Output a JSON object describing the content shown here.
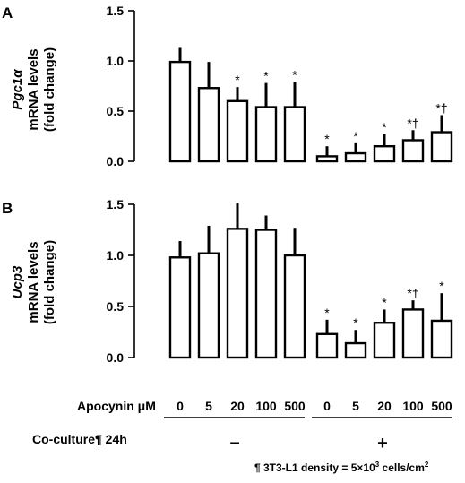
{
  "panels": [
    {
      "letter": "A",
      "gene": "Pgc1α",
      "ylabel_line2": "mRNA levels",
      "ylabel_line3": "(fold change)"
    },
    {
      "letter": "B",
      "gene": "Ucp3",
      "ylabel_line2": "mRNA levels",
      "ylabel_line3": "(fold change)"
    }
  ],
  "conditions": {
    "apocynin_label": "Apocynin μM",
    "apocynin_values": [
      "0",
      "5",
      "20",
      "100",
      "500",
      "0",
      "5",
      "20",
      "100",
      "500"
    ],
    "coculture_label": "Co-culture¶ 24h",
    "coculture_groups": [
      "–",
      "+"
    ]
  },
  "footnote": {
    "prefix": "¶ 3T3-L1 density = 5×10",
    "exp": "3",
    "suffix": " cells/cm",
    "exp2": "2"
  },
  "chart_data": [
    {
      "type": "bar",
      "panel": "A",
      "ylabel": "Pgc1α mRNA levels (fold change)",
      "ylim": [
        0,
        1.5
      ],
      "yticks": [
        "0.0",
        "0.5",
        "1.0",
        "1.5"
      ],
      "categories": [
        "0",
        "5",
        "20",
        "100",
        "500",
        "0",
        "5",
        "20",
        "100",
        "500"
      ],
      "values": [
        0.99,
        0.73,
        0.6,
        0.54,
        0.54,
        0.05,
        0.08,
        0.15,
        0.21,
        0.29
      ],
      "errors": [
        0.14,
        0.26,
        0.14,
        0.24,
        0.25,
        0.1,
        0.1,
        0.12,
        0.1,
        0.17
      ],
      "annotations": [
        "",
        "",
        "*",
        "*",
        "*",
        "*",
        "*",
        "*",
        "*†",
        "*†"
      ]
    },
    {
      "type": "bar",
      "panel": "B",
      "ylabel": "Ucp3 mRNA levels (fold change)",
      "ylim": [
        0,
        1.5
      ],
      "yticks": [
        "0.0",
        "0.5",
        "1.0",
        "1.5"
      ],
      "categories": [
        "0",
        "5",
        "20",
        "100",
        "500",
        "0",
        "5",
        "20",
        "100",
        "500"
      ],
      "values": [
        0.98,
        1.02,
        1.26,
        1.25,
        1.0,
        0.23,
        0.14,
        0.34,
        0.47,
        0.36
      ],
      "errors": [
        0.16,
        0.27,
        0.25,
        0.14,
        0.27,
        0.14,
        0.13,
        0.13,
        0.09,
        0.27
      ],
      "annotations": [
        "",
        "",
        "",
        "",
        "",
        "*",
        "*",
        "*",
        "*†",
        "*"
      ]
    }
  ]
}
